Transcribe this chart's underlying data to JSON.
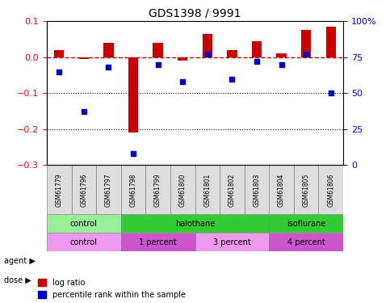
{
  "title": "GDS1398 / 9991",
  "samples": [
    "GSM61779",
    "GSM61796",
    "GSM61797",
    "GSM61798",
    "GSM61799",
    "GSM61800",
    "GSM61801",
    "GSM61802",
    "GSM61803",
    "GSM61804",
    "GSM61805",
    "GSM61806"
  ],
  "log_ratio": [
    0.02,
    -0.005,
    0.04,
    -0.21,
    0.04,
    -0.01,
    0.065,
    0.02,
    0.045,
    0.01,
    0.075,
    0.085
  ],
  "percentile_rank": [
    65,
    37,
    68,
    8,
    70,
    58,
    77,
    60,
    72,
    70,
    77,
    50
  ],
  "ylim_left": [
    -0.3,
    0.1
  ],
  "ylim_right": [
    0,
    100
  ],
  "yticks_left": [
    -0.3,
    -0.2,
    -0.1,
    0.0,
    0.1
  ],
  "yticks_right": [
    0,
    25,
    50,
    75,
    100
  ],
  "ytick_labels_right": [
    "0",
    "25",
    "50",
    "75",
    "100%"
  ],
  "bar_color": "#cc0000",
  "dot_color": "#0000cc",
  "dashed_line_color": "#cc0000",
  "agent_groups": [
    {
      "label": "control",
      "start": 0,
      "end": 3,
      "color": "#99ee99"
    },
    {
      "label": "halothane",
      "start": 3,
      "end": 9,
      "color": "#33cc33"
    },
    {
      "label": "isoflurane",
      "start": 9,
      "end": 12,
      "color": "#33cc33"
    }
  ],
  "dose_groups": [
    {
      "label": "control",
      "start": 0,
      "end": 3,
      "color": "#ee99ee"
    },
    {
      "label": "1 percent",
      "start": 3,
      "end": 6,
      "color": "#cc55cc"
    },
    {
      "label": "3 percent",
      "start": 6,
      "end": 9,
      "color": "#ee99ee"
    },
    {
      "label": "4 percent",
      "start": 9,
      "end": 12,
      "color": "#cc55cc"
    }
  ],
  "legend_items": [
    {
      "label": "log ratio",
      "color": "#cc0000"
    },
    {
      "label": "percentile rank within the sample",
      "color": "#0000cc"
    }
  ]
}
